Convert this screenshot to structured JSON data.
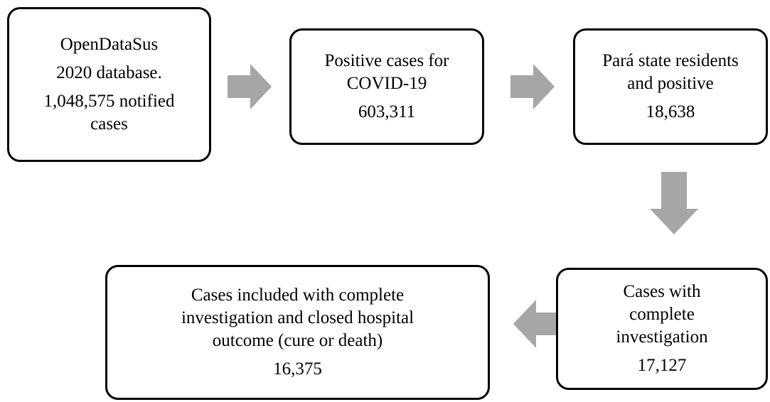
{
  "nodes": [
    {
      "lines": [
        "OpenDataSus",
        "2020 database.",
        "1,048,575 notified",
        "cases"
      ]
    },
    {
      "lines": [
        "Positive cases for",
        "COVID-19",
        "603,311"
      ]
    },
    {
      "lines": [
        "Pará state residents",
        "and positive",
        "18,638"
      ]
    },
    {
      "lines": [
        "Cases with",
        "complete",
        "investigation",
        "17,127"
      ]
    },
    {
      "lines": [
        "Cases included with complete",
        "investigation and closed hospital",
        "outcome (cure or death)",
        "16,375"
      ]
    }
  ]
}
